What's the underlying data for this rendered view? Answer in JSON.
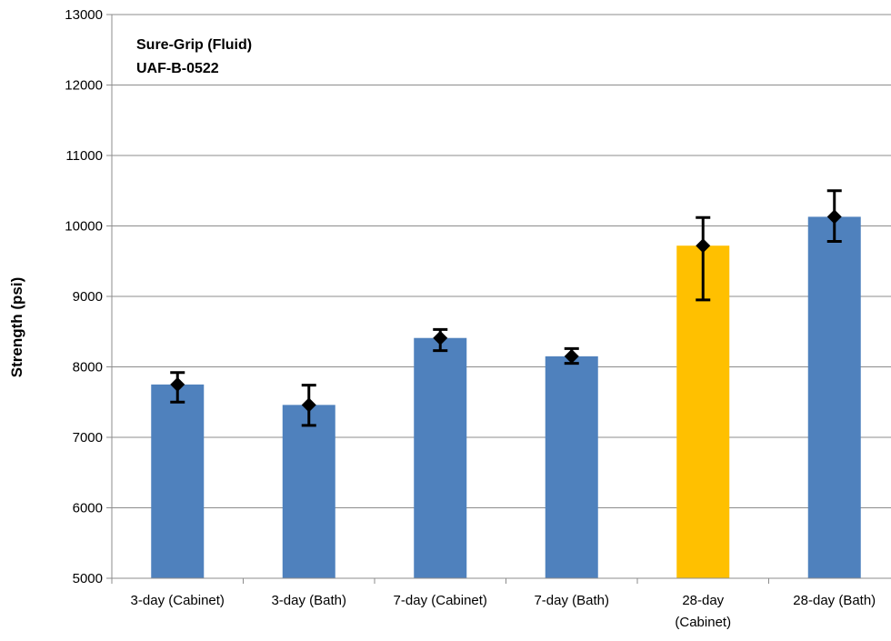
{
  "chart_data": {
    "type": "bar",
    "ylabel": "Strength (psi)",
    "ylim": [
      5000,
      13000
    ],
    "ytick_step": 1000,
    "grid": true,
    "annotation": [
      "Sure-Grip (Fluid)",
      "UAF-B-0522"
    ],
    "categories": [
      [
        "3-day (Cabinet)"
      ],
      [
        "3-day (Bath)"
      ],
      [
        "7-day (Cabinet)"
      ],
      [
        "7-day (Bath)"
      ],
      [
        "28-day",
        "(Cabinet)"
      ],
      [
        "28-day (Bath)"
      ]
    ],
    "values": [
      7750,
      7460,
      8410,
      8150,
      9720,
      10130
    ],
    "error_low": [
      7500,
      7170,
      8230,
      8050,
      8950,
      9780
    ],
    "error_high": [
      7920,
      7740,
      8530,
      8260,
      10120,
      10500
    ],
    "colors": [
      "#4f81bd",
      "#4f81bd",
      "#4f81bd",
      "#4f81bd",
      "#ffc000",
      "#4f81bd"
    ],
    "marker_color": "#000000"
  }
}
